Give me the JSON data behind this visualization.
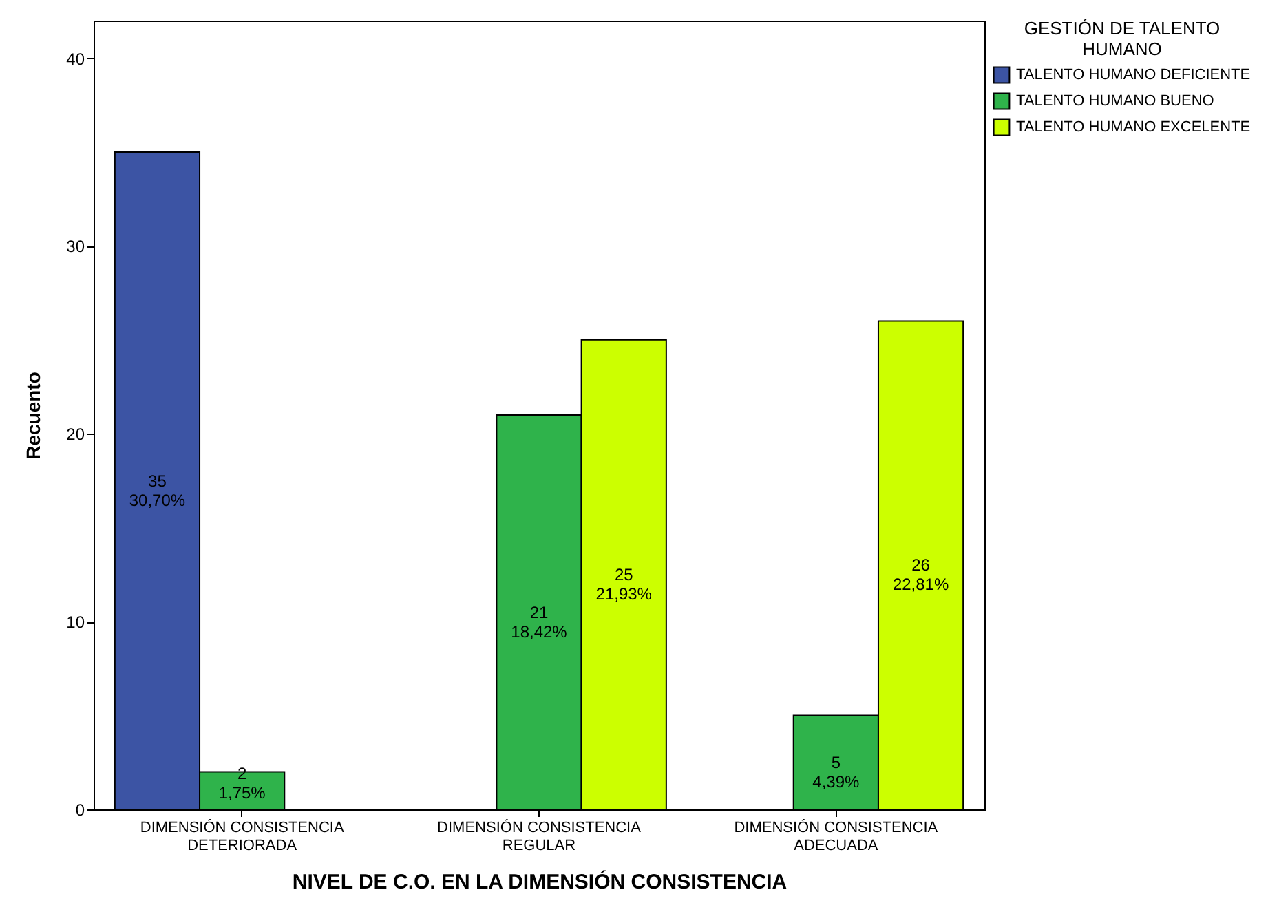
{
  "chart_data": {
    "type": "bar",
    "xlabel": "NIVEL DE C.O. EN LA DIMENSIÓN CONSISTENCIA",
    "ylabel": "Recuento",
    "legend_title": "GESTIÓN DE TALENTO HUMANO",
    "legend": "top right",
    "grid": false,
    "categories": [
      "DIMENSIÓN CONSISTENCIA DETERIORADA",
      "DIMENSIÓN CONSISTENCIA REGULAR",
      "DIMENSIÓN CONSISTENCIA ADECUADA"
    ],
    "ylim": [
      0,
      42
    ],
    "yticks": [
      0,
      10,
      20,
      30,
      40
    ],
    "series": [
      {
        "name": "TALENTO HUMANO DEFICIENTE",
        "color": "#3c54a4",
        "values": [
          35,
          null,
          null
        ],
        "value_labels": [
          "35\n30,70%",
          null,
          null
        ]
      },
      {
        "name": "TALENTO HUMANO BUENO",
        "color": "#2fb34b",
        "values": [
          2,
          21,
          5
        ],
        "value_labels": [
          "2\n1,75%",
          "21\n18,42%",
          "5\n4,39%"
        ]
      },
      {
        "name": "TALENTO HUMANO EXCELENTE",
        "color": "#ccff00",
        "values": [
          null,
          25,
          26
        ],
        "value_labels": [
          null,
          "25\n21,93%",
          "26\n22,81%"
        ]
      }
    ]
  }
}
